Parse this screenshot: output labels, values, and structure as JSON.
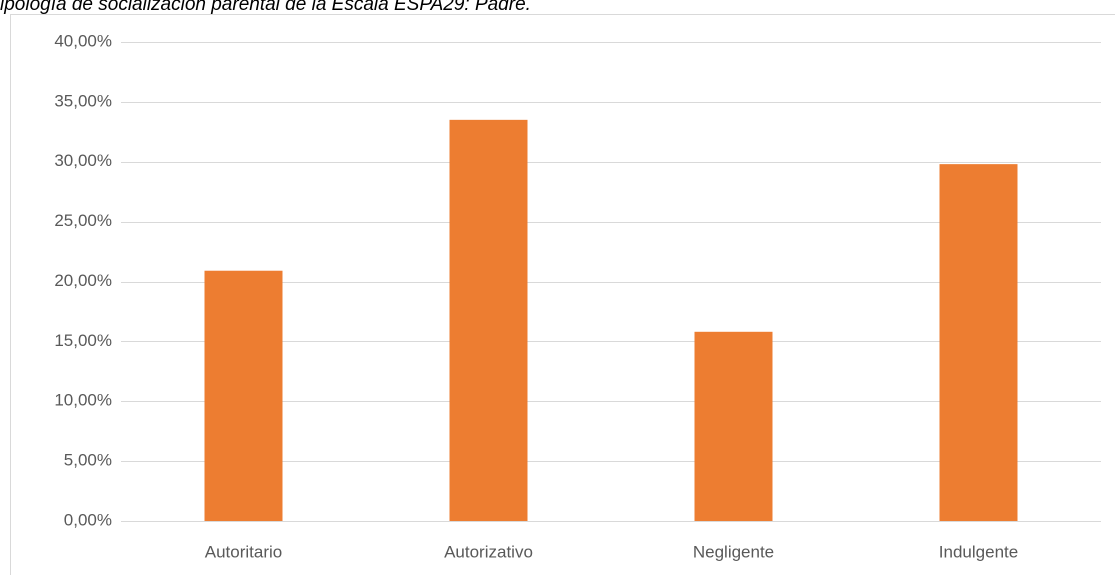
{
  "chart_data": {
    "type": "bar",
    "title": "ipología de socialización parental de la Escala ESPA29: Padre.",
    "categories": [
      "Autoritario",
      "Autorizativo",
      "Negligente",
      "Indulgente"
    ],
    "values": [
      20.9,
      33.5,
      15.8,
      29.8
    ],
    "color": "#ed7d31",
    "ylim": [
      0,
      40
    ],
    "yticks": [
      {
        "value": 0,
        "label": "0,00%"
      },
      {
        "value": 5,
        "label": "5,00%"
      },
      {
        "value": 10,
        "label": "10,00%"
      },
      {
        "value": 15,
        "label": "15,00%"
      },
      {
        "value": 20,
        "label": "20,00%"
      },
      {
        "value": 25,
        "label": "25,00%"
      },
      {
        "value": 30,
        "label": "30,00%"
      },
      {
        "value": 35,
        "label": "35,00%"
      },
      {
        "value": 40,
        "label": "40,00%"
      }
    ],
    "grid": true
  }
}
